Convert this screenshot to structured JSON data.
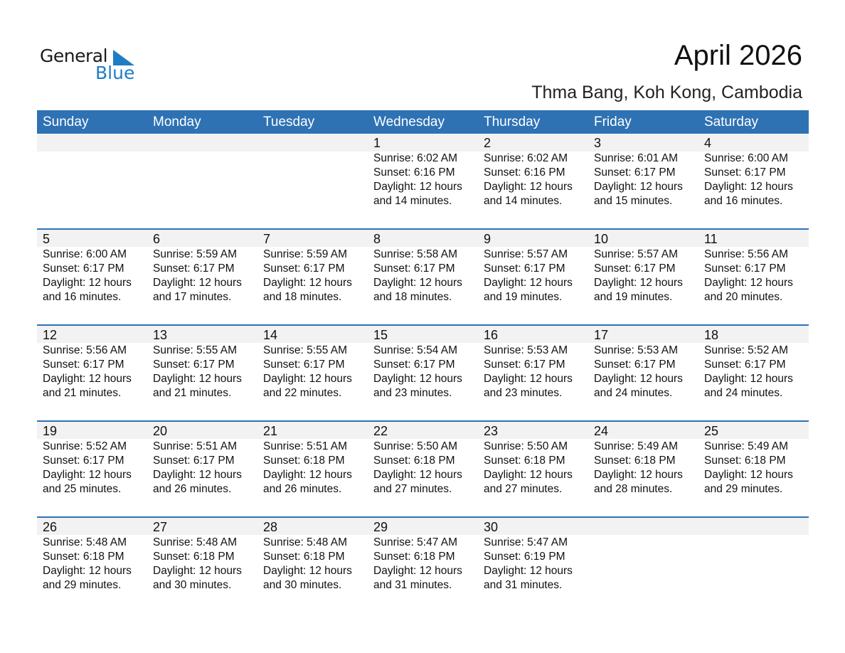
{
  "logo": {
    "word1": "General",
    "word2": "Blue"
  },
  "title": "April 2026",
  "subtitle": "Thma Bang, Koh Kong, Cambodia",
  "colors": {
    "header": "#2e72b4",
    "strip": "#f2f2f2",
    "logo_blue": "#1f7cc4"
  },
  "days": [
    "Sunday",
    "Monday",
    "Tuesday",
    "Wednesday",
    "Thursday",
    "Friday",
    "Saturday"
  ],
  "weeks": [
    [
      null,
      null,
      null,
      {
        "d": "1",
        "sr": "Sunrise: 6:02 AM",
        "ss": "Sunset: 6:16 PM",
        "dl1": "Daylight: 12 hours",
        "dl2": "and 14 minutes."
      },
      {
        "d": "2",
        "sr": "Sunrise: 6:02 AM",
        "ss": "Sunset: 6:16 PM",
        "dl1": "Daylight: 12 hours",
        "dl2": "and 14 minutes."
      },
      {
        "d": "3",
        "sr": "Sunrise: 6:01 AM",
        "ss": "Sunset: 6:17 PM",
        "dl1": "Daylight: 12 hours",
        "dl2": "and 15 minutes."
      },
      {
        "d": "4",
        "sr": "Sunrise: 6:00 AM",
        "ss": "Sunset: 6:17 PM",
        "dl1": "Daylight: 12 hours",
        "dl2": "and 16 minutes."
      }
    ],
    [
      {
        "d": "5",
        "sr": "Sunrise: 6:00 AM",
        "ss": "Sunset: 6:17 PM",
        "dl1": "Daylight: 12 hours",
        "dl2": "and 16 minutes."
      },
      {
        "d": "6",
        "sr": "Sunrise: 5:59 AM",
        "ss": "Sunset: 6:17 PM",
        "dl1": "Daylight: 12 hours",
        "dl2": "and 17 minutes."
      },
      {
        "d": "7",
        "sr": "Sunrise: 5:59 AM",
        "ss": "Sunset: 6:17 PM",
        "dl1": "Daylight: 12 hours",
        "dl2": "and 18 minutes."
      },
      {
        "d": "8",
        "sr": "Sunrise: 5:58 AM",
        "ss": "Sunset: 6:17 PM",
        "dl1": "Daylight: 12 hours",
        "dl2": "and 18 minutes."
      },
      {
        "d": "9",
        "sr": "Sunrise: 5:57 AM",
        "ss": "Sunset: 6:17 PM",
        "dl1": "Daylight: 12 hours",
        "dl2": "and 19 minutes."
      },
      {
        "d": "10",
        "sr": "Sunrise: 5:57 AM",
        "ss": "Sunset: 6:17 PM",
        "dl1": "Daylight: 12 hours",
        "dl2": "and 19 minutes."
      },
      {
        "d": "11",
        "sr": "Sunrise: 5:56 AM",
        "ss": "Sunset: 6:17 PM",
        "dl1": "Daylight: 12 hours",
        "dl2": "and 20 minutes."
      }
    ],
    [
      {
        "d": "12",
        "sr": "Sunrise: 5:56 AM",
        "ss": "Sunset: 6:17 PM",
        "dl1": "Daylight: 12 hours",
        "dl2": "and 21 minutes."
      },
      {
        "d": "13",
        "sr": "Sunrise: 5:55 AM",
        "ss": "Sunset: 6:17 PM",
        "dl1": "Daylight: 12 hours",
        "dl2": "and 21 minutes."
      },
      {
        "d": "14",
        "sr": "Sunrise: 5:55 AM",
        "ss": "Sunset: 6:17 PM",
        "dl1": "Daylight: 12 hours",
        "dl2": "and 22 minutes."
      },
      {
        "d": "15",
        "sr": "Sunrise: 5:54 AM",
        "ss": "Sunset: 6:17 PM",
        "dl1": "Daylight: 12 hours",
        "dl2": "and 23 minutes."
      },
      {
        "d": "16",
        "sr": "Sunrise: 5:53 AM",
        "ss": "Sunset: 6:17 PM",
        "dl1": "Daylight: 12 hours",
        "dl2": "and 23 minutes."
      },
      {
        "d": "17",
        "sr": "Sunrise: 5:53 AM",
        "ss": "Sunset: 6:17 PM",
        "dl1": "Daylight: 12 hours",
        "dl2": "and 24 minutes."
      },
      {
        "d": "18",
        "sr": "Sunrise: 5:52 AM",
        "ss": "Sunset: 6:17 PM",
        "dl1": "Daylight: 12 hours",
        "dl2": "and 24 minutes."
      }
    ],
    [
      {
        "d": "19",
        "sr": "Sunrise: 5:52 AM",
        "ss": "Sunset: 6:17 PM",
        "dl1": "Daylight: 12 hours",
        "dl2": "and 25 minutes."
      },
      {
        "d": "20",
        "sr": "Sunrise: 5:51 AM",
        "ss": "Sunset: 6:17 PM",
        "dl1": "Daylight: 12 hours",
        "dl2": "and 26 minutes."
      },
      {
        "d": "21",
        "sr": "Sunrise: 5:51 AM",
        "ss": "Sunset: 6:18 PM",
        "dl1": "Daylight: 12 hours",
        "dl2": "and 26 minutes."
      },
      {
        "d": "22",
        "sr": "Sunrise: 5:50 AM",
        "ss": "Sunset: 6:18 PM",
        "dl1": "Daylight: 12 hours",
        "dl2": "and 27 minutes."
      },
      {
        "d": "23",
        "sr": "Sunrise: 5:50 AM",
        "ss": "Sunset: 6:18 PM",
        "dl1": "Daylight: 12 hours",
        "dl2": "and 27 minutes."
      },
      {
        "d": "24",
        "sr": "Sunrise: 5:49 AM",
        "ss": "Sunset: 6:18 PM",
        "dl1": "Daylight: 12 hours",
        "dl2": "and 28 minutes."
      },
      {
        "d": "25",
        "sr": "Sunrise: 5:49 AM",
        "ss": "Sunset: 6:18 PM",
        "dl1": "Daylight: 12 hours",
        "dl2": "and 29 minutes."
      }
    ],
    [
      {
        "d": "26",
        "sr": "Sunrise: 5:48 AM",
        "ss": "Sunset: 6:18 PM",
        "dl1": "Daylight: 12 hours",
        "dl2": "and 29 minutes."
      },
      {
        "d": "27",
        "sr": "Sunrise: 5:48 AM",
        "ss": "Sunset: 6:18 PM",
        "dl1": "Daylight: 12 hours",
        "dl2": "and 30 minutes."
      },
      {
        "d": "28",
        "sr": "Sunrise: 5:48 AM",
        "ss": "Sunset: 6:18 PM",
        "dl1": "Daylight: 12 hours",
        "dl2": "and 30 minutes."
      },
      {
        "d": "29",
        "sr": "Sunrise: 5:47 AM",
        "ss": "Sunset: 6:18 PM",
        "dl1": "Daylight: 12 hours",
        "dl2": "and 31 minutes."
      },
      {
        "d": "30",
        "sr": "Sunrise: 5:47 AM",
        "ss": "Sunset: 6:19 PM",
        "dl1": "Daylight: 12 hours",
        "dl2": "and 31 minutes."
      },
      null,
      null
    ]
  ]
}
